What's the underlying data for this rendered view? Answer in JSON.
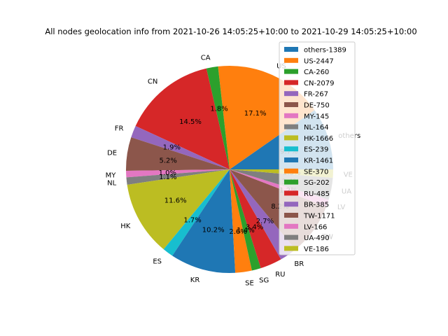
{
  "chart_data": {
    "type": "pie",
    "title": "All nodes geolocation info from 2021-10-26 14:05:25+10:00 to 2021-10-29 14:05:25+10:00",
    "legend_position": "upper-right",
    "slices": [
      {
        "label": "others",
        "legend": "others-1389",
        "value": 1389,
        "pct": "9.7%",
        "color": "#1f77b4"
      },
      {
        "label": "US",
        "legend": "US-2447",
        "value": 2447,
        "pct": "17.1%",
        "color": "#ff7f0e"
      },
      {
        "label": "CA",
        "legend": "CA-260",
        "value": 260,
        "pct": "1.8%",
        "color": "#2ca02c"
      },
      {
        "label": "CN",
        "legend": "CN-2079",
        "value": 2079,
        "pct": "14.5%",
        "color": "#d62728"
      },
      {
        "label": "FR",
        "legend": "FR-267",
        "value": 267,
        "pct": "1.9%",
        "color": "#9467bd"
      },
      {
        "label": "DE",
        "legend": "DE-750",
        "value": 750,
        "pct": "5.2%",
        "color": "#8c564b"
      },
      {
        "label": "MY",
        "legend": "MY-145",
        "value": 145,
        "pct": "1.0%",
        "color": "#e377c2"
      },
      {
        "label": "NL",
        "legend": "NL-164",
        "value": 164,
        "pct": "1.1%",
        "color": "#7f7f7f"
      },
      {
        "label": "HK",
        "legend": "HK-1666",
        "value": 1666,
        "pct": "11.6%",
        "color": "#bcbd22"
      },
      {
        "label": "ES",
        "legend": "ES-239",
        "value": 239,
        "pct": "1.7%",
        "color": "#17becf"
      },
      {
        "label": "KR",
        "legend": "KR-1461",
        "value": 1461,
        "pct": "10.2%",
        "color": "#1f77b4"
      },
      {
        "label": "SE",
        "legend": "SE-370",
        "value": 370,
        "pct": "2.6%",
        "color": "#ff7f0e"
      },
      {
        "label": "SG",
        "legend": "SG-202",
        "value": 202,
        "pct": "1.4%",
        "color": "#2ca02c"
      },
      {
        "label": "RU",
        "legend": "RU-485",
        "value": 485,
        "pct": "3.4%",
        "color": "#d62728"
      },
      {
        "label": "BR",
        "legend": "BR-385",
        "value": 385,
        "pct": "2.7%",
        "color": "#9467bd"
      },
      {
        "label": "TW",
        "legend": "TW-1171",
        "value": 1171,
        "pct": "8.2%",
        "color": "#8c564b"
      },
      {
        "label": "LV",
        "legend": "LV-166",
        "value": 166,
        "pct": "1.2%",
        "color": "#e377c2"
      },
      {
        "label": "UA",
        "legend": "UA-490",
        "value": 490,
        "pct": "3.4%",
        "color": "#7f7f7f"
      },
      {
        "label": "VE",
        "legend": "VE-186",
        "value": 186,
        "pct": "1.3%",
        "color": "#bcbd22"
      }
    ]
  }
}
